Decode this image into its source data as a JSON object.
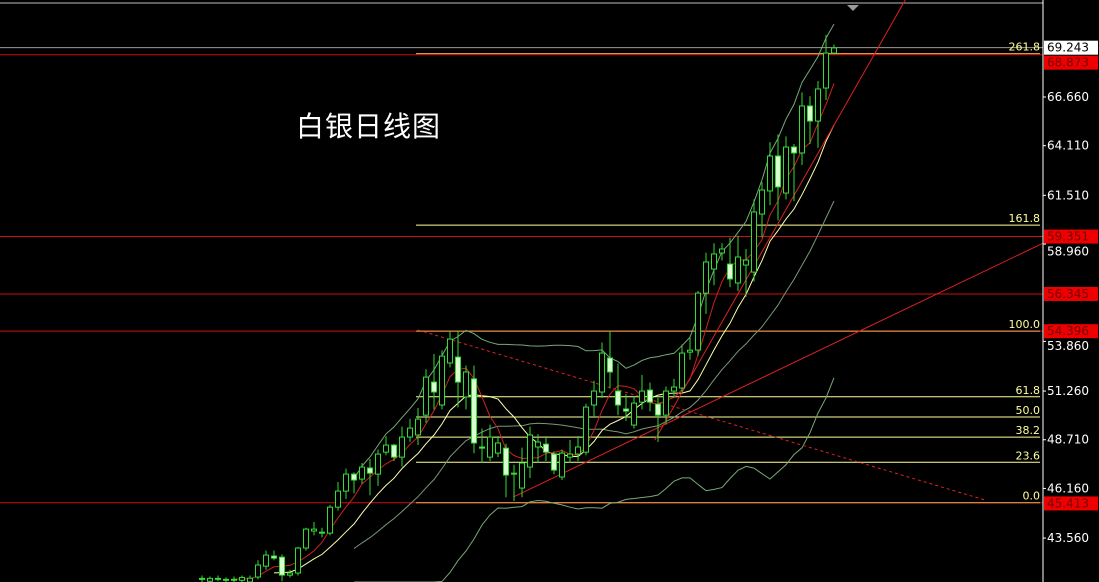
{
  "chart_data": {
    "type": "candlestick",
    "title": "白银日线图",
    "ylim": [
      41.26,
      71.74
    ],
    "y_ticks": [
      "43.560",
      "46.160",
      "48.710",
      "51.260",
      "53.860",
      "58.960",
      "61.510",
      "64.110",
      "66.660"
    ],
    "current_price": {
      "label": "69.243",
      "value": 69.243
    },
    "price_lines": [
      {
        "label": "68.873",
        "value": 68.873
      },
      {
        "label": "59.351",
        "value": 59.351
      },
      {
        "label": "56.345",
        "value": 56.345
      },
      {
        "label": "54.396",
        "value": 54.396
      },
      {
        "label": "45.413",
        "value": 45.413
      }
    ],
    "fibonacci": [
      {
        "label": "261.8",
        "value": 68.93
      },
      {
        "label": "161.8",
        "value": 59.95
      },
      {
        "label": "100.0",
        "value": 54.396
      },
      {
        "label": "61.8",
        "value": 50.96
      },
      {
        "label": "50.0",
        "value": 49.9
      },
      {
        "label": "38.2",
        "value": 48.85
      },
      {
        "label": "23.6",
        "value": 47.53
      },
      {
        "label": "0.0",
        "value": 45.413
      }
    ],
    "trendlines": [
      {
        "style": "solid",
        "from": [
          38.9,
          45.71
        ],
        "to": [
          105.1,
          59.0
        ]
      },
      {
        "style": "solid",
        "from": [
          56.6,
          48.69
        ],
        "to": [
          87.9,
          71.74
        ]
      },
      {
        "style": "dashed",
        "from": [
          27,
          54.46
        ],
        "to": [
          97.9,
          45.55
        ]
      }
    ],
    "candles": [
      [
        41.4,
        41.6,
        41.2,
        41.45
      ],
      [
        41.3,
        41.55,
        41.2,
        41.45
      ],
      [
        41.45,
        41.6,
        41.3,
        41.4
      ],
      [
        41.35,
        41.5,
        41.2,
        41.4
      ],
      [
        41.4,
        41.55,
        41.25,
        41.35
      ],
      [
        41.35,
        41.6,
        41.2,
        41.5
      ],
      [
        41.26,
        41.6,
        41.2,
        41.46
      ],
      [
        41.52,
        42.4,
        41.4,
        42.15
      ],
      [
        42.09,
        42.9,
        41.9,
        42.67
      ],
      [
        42.62,
        42.9,
        42.4,
        42.51
      ],
      [
        42.56,
        42.7,
        41.3,
        41.62
      ],
      [
        41.62,
        41.9,
        41.5,
        41.73
      ],
      [
        41.73,
        43.1,
        41.6,
        43.04
      ],
      [
        43.04,
        44.1,
        42.9,
        44.03
      ],
      [
        43.93,
        44.4,
        43.7,
        44.03
      ],
      [
        43.87,
        44.1,
        43.6,
        43.82
      ],
      [
        43.82,
        45.3,
        43.7,
        45.18
      ],
      [
        45.18,
        46.5,
        45.0,
        46.02
      ],
      [
        46.02,
        47.2,
        45.6,
        46.91
      ],
      [
        46.91,
        47.0,
        45.9,
        46.6
      ],
      [
        46.65,
        47.5,
        46.4,
        47.28
      ],
      [
        47.23,
        47.7,
        45.8,
        46.96
      ],
      [
        46.91,
        48.2,
        46.3,
        47.96
      ],
      [
        48.06,
        48.9,
        47.9,
        48.43
      ],
      [
        48.43,
        48.5,
        47.6,
        47.8
      ],
      [
        47.8,
        49.4,
        47.3,
        48.85
      ],
      [
        48.85,
        49.8,
        48.6,
        49.32
      ],
      [
        48.96,
        50.37,
        48.43,
        49.79
      ],
      [
        50.0,
        52.4,
        49.6,
        51.99
      ],
      [
        51.73,
        53.2,
        50.3,
        51.21
      ],
      [
        50.53,
        53.4,
        50.3,
        53.09
      ],
      [
        52.73,
        54.4,
        52.5,
        53.98
      ],
      [
        53.04,
        54.4,
        50.4,
        51.73
      ],
      [
        50.95,
        52.6,
        50.3,
        52.26
      ],
      [
        51.9,
        52.6,
        48.0,
        48.54
      ],
      [
        48.33,
        49.3,
        47.5,
        48.27
      ],
      [
        47.8,
        49.5,
        47.6,
        48.85
      ],
      [
        48.01,
        48.9,
        47.8,
        48.54
      ],
      [
        48.27,
        48.5,
        45.7,
        46.86
      ],
      [
        46.96,
        47.4,
        45.5,
        46.91
      ],
      [
        46.18,
        48.3,
        45.7,
        47.49
      ],
      [
        47.28,
        49.4,
        46.7,
        48.96
      ],
      [
        48.33,
        49.0,
        47.5,
        48.59
      ],
      [
        48.48,
        48.9,
        47.6,
        48.06
      ],
      [
        47.96,
        48.1,
        46.9,
        47.12
      ],
      [
        46.76,
        48.2,
        46.6,
        48.01
      ],
      [
        47.8,
        48.7,
        47.5,
        47.96
      ],
      [
        47.96,
        48.9,
        47.6,
        48.33
      ],
      [
        48.06,
        50.6,
        47.9,
        50.42
      ],
      [
        50.53,
        51.8,
        49.9,
        51.26
      ],
      [
        51.21,
        53.8,
        50.9,
        53.25
      ],
      [
        52.99,
        54.4,
        51.4,
        52.26
      ],
      [
        51.26,
        52.7,
        50.0,
        50.53
      ],
      [
        50.32,
        51.1,
        49.7,
        50.21
      ],
      [
        49.48,
        51.0,
        49.3,
        50.63
      ],
      [
        50.68,
        52.1,
        50.3,
        51.26
      ],
      [
        51.31,
        51.7,
        50.2,
        50.68
      ],
      [
        50.58,
        50.9,
        48.6,
        50.0
      ],
      [
        50.0,
        51.5,
        49.5,
        51.26
      ],
      [
        51.26,
        51.9,
        50.9,
        51.47
      ],
      [
        51.42,
        53.7,
        51.2,
        53.25
      ],
      [
        53.3,
        54.1,
        52.9,
        53.4
      ],
      [
        53.41,
        56.5,
        53.1,
        56.39
      ],
      [
        56.39,
        58.5,
        55.3,
        58.02
      ],
      [
        57.65,
        59.0,
        56.8,
        58.44
      ],
      [
        58.49,
        59.0,
        58.1,
        58.7
      ],
      [
        57.91,
        59.3,
        56.7,
        57.13
      ],
      [
        56.92,
        59.4,
        56.5,
        58.28
      ],
      [
        57.86,
        58.7,
        56.2,
        58.12
      ],
      [
        57.49,
        61.3,
        57.0,
        60.64
      ],
      [
        60.53,
        62.2,
        59.3,
        61.79
      ],
      [
        61.74,
        64.3,
        61.0,
        63.57
      ],
      [
        63.57,
        64.7,
        60.2,
        61.95
      ],
      [
        61.63,
        64.6,
        61.3,
        64.04
      ],
      [
        64.04,
        64.2,
        61.2,
        63.73
      ],
      [
        63.73,
        66.9,
        63.1,
        66.19
      ],
      [
        66.19,
        66.7,
        64.2,
        65.4
      ],
      [
        65.4,
        67.5,
        64.0,
        67.08
      ],
      [
        67.13,
        69.9,
        66.5,
        68.96
      ],
      [
        68.96,
        69.4,
        68.9,
        69.23
      ]
    ],
    "colors": {
      "background": "#000000",
      "candle": "#33dd33",
      "candle_down_fill": "#d8ffd0",
      "price_line": "#cc1111",
      "price_tag": "#ee0000",
      "fib": "#ffff99",
      "trendline": "#dd2222",
      "band": "#77aa77",
      "ma_fast": "#cc2222",
      "ma_slow": "#ffffaa",
      "axis": "#ffffff"
    }
  }
}
